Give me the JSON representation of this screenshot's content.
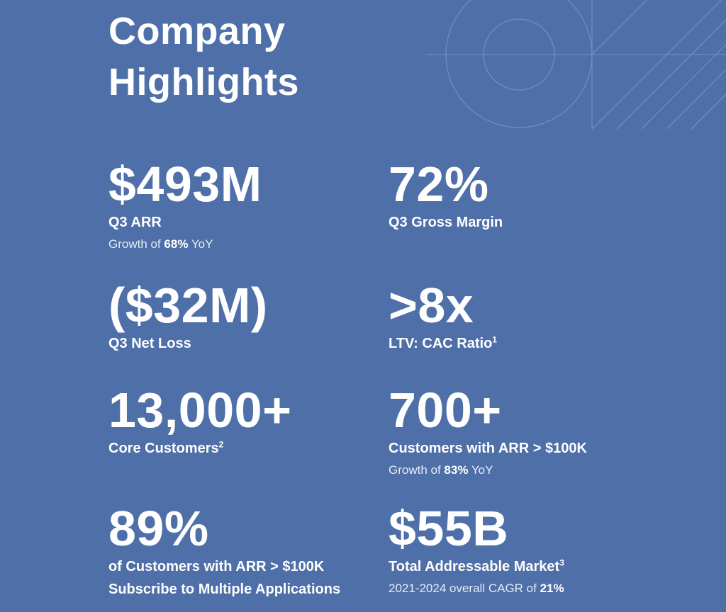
{
  "header": {
    "title_line1": "Company",
    "title_line2": "Highlights"
  },
  "metrics": [
    {
      "value": "$493M",
      "label": "Q3 ARR",
      "note_prefix": "Growth of ",
      "note_bold": "68%",
      "note_suffix": " YoY"
    },
    {
      "value": "72%",
      "label": "Q3 Gross Margin"
    },
    {
      "value": "($32M)",
      "label": "Q3 Net Loss"
    },
    {
      "value": ">8x",
      "label": "LTV: CAC Ratio",
      "footnote": "1"
    },
    {
      "value": "13,000+",
      "label": "Core Customers",
      "footnote": "2"
    },
    {
      "value": "700+",
      "label": "Customers with ARR > $100K",
      "note_prefix": "Growth of ",
      "note_bold": "83%",
      "note_suffix": " YoY"
    },
    {
      "value": "89%",
      "label_line1": "of Customers with ARR > $100K",
      "label_line2": "Subscribe to Multiple Applications"
    },
    {
      "value": "$55B",
      "label": "Total Addressable Market",
      "footnote": "3",
      "note_prefix": "2021-2024 overall CAGR of ",
      "note_bold": "21%"
    }
  ],
  "colors": {
    "background": "#4f6fa8",
    "text": "#ffffff",
    "decoration_lines": "#7e97c4"
  },
  "decoration": {
    "icon": "circle-and-diagonal-lines-graphic"
  }
}
